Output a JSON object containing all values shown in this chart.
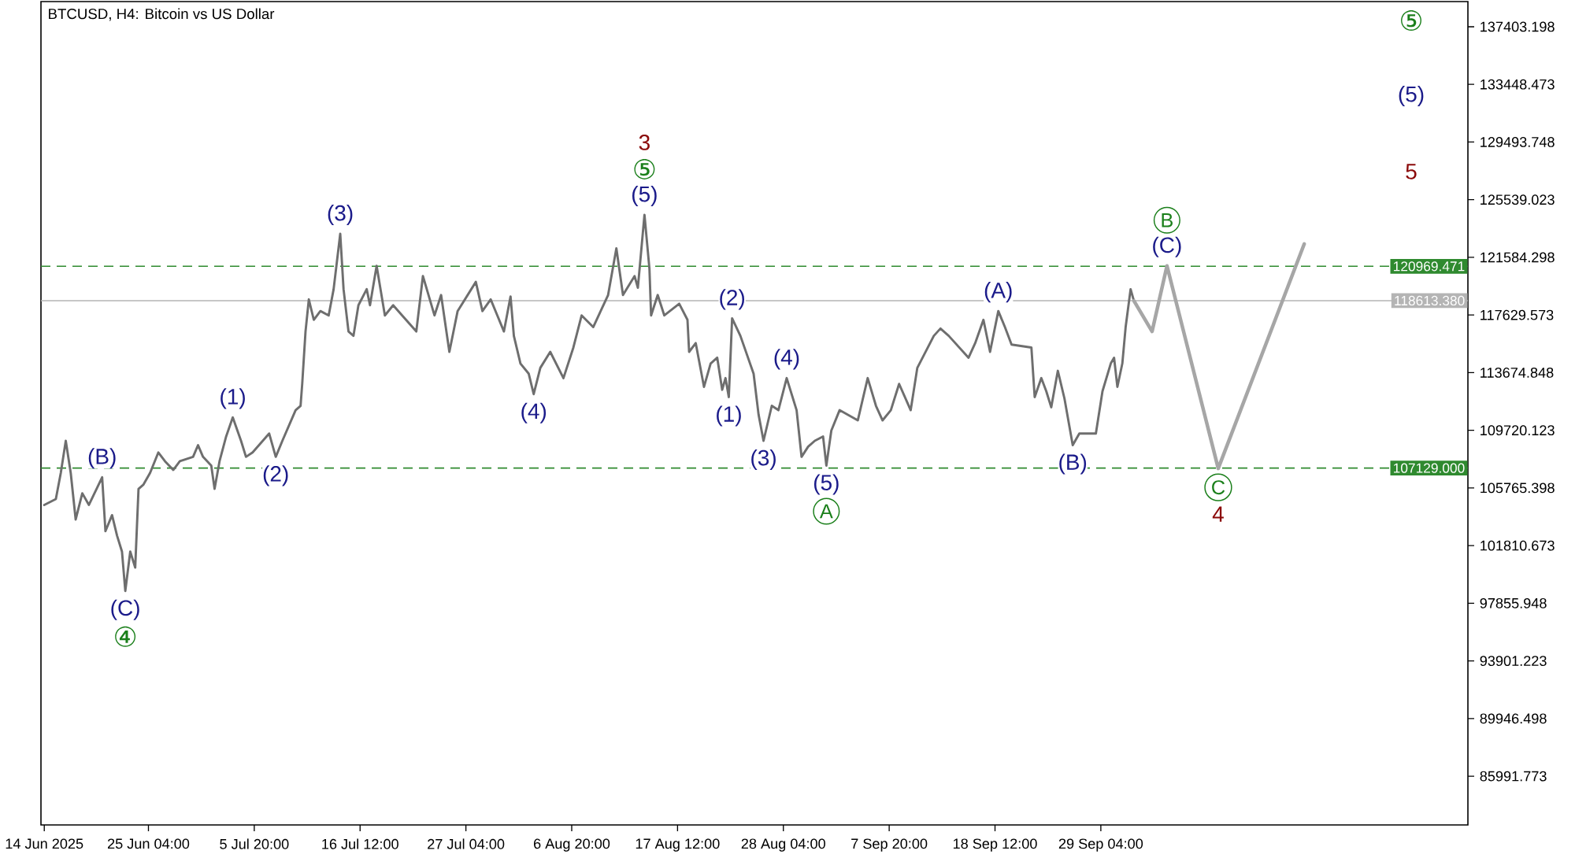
{
  "chart_data": {
    "type": "line",
    "title": "BTCUSD, H4: Bitcoin vs US Dollar",
    "series": [
      {
        "color": "#6e6e6e",
        "x": [
          "2025-06-14T16:00",
          "2025-06-15T20:00",
          "2025-06-16T08:00",
          "2025-06-16T20:00",
          "2025-06-17T08:00",
          "2025-06-17T20:00",
          "2025-06-18T12:00",
          "2025-06-19T04:00",
          "2025-06-20T12:00",
          "2025-06-20T20:00",
          "2025-06-21T12:00",
          "2025-06-22T00:00",
          "2025-06-22T12:00",
          "2025-06-22T20:00",
          "2025-06-23T08:00",
          "2025-06-23T20:00",
          "2025-06-24T04:00",
          "2025-06-24T16:00",
          "2025-06-25T08:00",
          "2025-06-26T04:00",
          "2025-06-26T20:00",
          "2025-06-27T16:00",
          "2025-06-28T08:00",
          "2025-06-29T16:00",
          "2025-06-30T04:00",
          "2025-06-30T16:00",
          "2025-07-01T12:00",
          "2025-07-01T20:00",
          "2025-07-02T08:00",
          "2025-07-03T00:00",
          "2025-07-03T16:00",
          "2025-07-04T12:00",
          "2025-07-05T00:00",
          "2025-07-05T16:00",
          "2025-07-07T08:00",
          "2025-07-08T00:00",
          "2025-07-08T16:00",
          "2025-07-10T00:00",
          "2025-07-10T12:00",
          "2025-07-10T16:00",
          "2025-07-11T00:00",
          "2025-07-11T08:00",
          "2025-07-11T20:00",
          "2025-07-12T12:00",
          "2025-07-13T08:00",
          "2025-07-13T20:00",
          "2025-07-14T12:00",
          "2025-07-14T20:00",
          "2025-07-15T08:00",
          "2025-07-15T20:00",
          "2025-07-16T08:00",
          "2025-07-17T04:00",
          "2025-07-17T12:00",
          "2025-07-18T04:00",
          "2025-07-19T00:00",
          "2025-07-19T20:00",
          "2025-07-22T04:00",
          "2025-07-22T20:00",
          "2025-07-24T00:00",
          "2025-07-24T16:00",
          "2025-07-25T12:00",
          "2025-07-26T08:00",
          "2025-07-28T04:00",
          "2025-07-28T20:00",
          "2025-07-29T16:00",
          "2025-07-30T08:00",
          "2025-07-31T00:00",
          "2025-07-31T16:00",
          "2025-08-01T00:00",
          "2025-08-01T16:00",
          "2025-08-02T12:00",
          "2025-08-03T00:00",
          "2025-08-03T16:00",
          "2025-08-04T16:00",
          "2025-08-06T00:00",
          "2025-08-07T00:00",
          "2025-08-07T20:00",
          "2025-08-09T00:00",
          "2025-08-10T12:00",
          "2025-08-11T08:00",
          "2025-08-12T00:00",
          "2025-08-13T04:00",
          "2025-08-13T12:00",
          "2025-08-14T04:00",
          "2025-08-14T16:00",
          "2025-08-14T20:00",
          "2025-08-15T12:00",
          "2025-08-16T04:00",
          "2025-08-17T16:00",
          "2025-08-18T12:00",
          "2025-08-18T16:00",
          "2025-08-19T08:00",
          "2025-08-20T04:00",
          "2025-08-20T20:00",
          "2025-08-21T12:00",
          "2025-08-22T00:00",
          "2025-08-22T08:00",
          "2025-08-22T16:00",
          "2025-08-23T00:00",
          "2025-08-23T20:00",
          "2025-08-25T04:00",
          "2025-08-25T16:00",
          "2025-08-26T04:00",
          "2025-08-27T00:00",
          "2025-08-27T16:00",
          "2025-08-28T12:00",
          "2025-08-29T12:00",
          "2025-08-30T00:00",
          "2025-08-30T16:00",
          "2025-08-31T08:00",
          "2025-09-01T04:00",
          "2025-09-01T12:00",
          "2025-09-02T00:00",
          "2025-09-02T20:00",
          "2025-09-04T16:00",
          "2025-09-05T16:00",
          "2025-09-06T12:00",
          "2025-09-07T04:00",
          "2025-09-08T00:00",
          "2025-09-08T20:00",
          "2025-09-10T00:00",
          "2025-09-10T16:00",
          "2025-09-12T08:00",
          "2025-09-13T00:00",
          "2025-09-13T20:00",
          "2025-09-15T20:00",
          "2025-09-16T12:00",
          "2025-09-17T08:00",
          "2025-09-18T00:00",
          "2025-09-18T20:00",
          "2025-09-19T12:00",
          "2025-09-20T04:00",
          "2025-09-22T04:00",
          "2025-09-22T12:00",
          "2025-09-23T04:00",
          "2025-09-23T16:00",
          "2025-09-24T04:00",
          "2025-09-24T20:00",
          "2025-09-25T12:00",
          "2025-09-26T08:00",
          "2025-09-27T00:00",
          "2025-09-28T16:00",
          "2025-09-29T08:00",
          "2025-09-30T04:00",
          "2025-09-30T12:00",
          "2025-09-30T20:00",
          "2025-10-01T08:00",
          "2025-10-01T16:00",
          "2025-10-02T04:00",
          "2025-10-02T12:00"
        ],
        "values": [
          104600,
          105000,
          106800,
          109000,
          106800,
          103600,
          105400,
          104600,
          106500,
          102800,
          103900,
          102500,
          101400,
          98700,
          101400,
          100300,
          105700,
          106000,
          106800,
          108200,
          107600,
          107000,
          107600,
          107900,
          108700,
          107900,
          107300,
          105700,
          107600,
          109300,
          110600,
          109000,
          107900,
          108200,
          109500,
          107900,
          109000,
          111100,
          111400,
          112900,
          116500,
          118700,
          117300,
          117900,
          117600,
          119400,
          123200,
          119400,
          116500,
          116200,
          118300,
          119400,
          118300,
          121000,
          117600,
          118300,
          116500,
          120300,
          117600,
          119000,
          115100,
          117900,
          119900,
          117900,
          118700,
          117600,
          116500,
          118900,
          116200,
          114300,
          113600,
          112200,
          114000,
          115100,
          113300,
          115400,
          117600,
          116800,
          119000,
          122200,
          119000,
          120300,
          119500,
          124500,
          120800,
          117600,
          119000,
          117600,
          118400,
          117300,
          115100,
          115700,
          112700,
          114300,
          114700,
          112500,
          113300,
          112000,
          117400,
          116200,
          113600,
          110800,
          109000,
          111400,
          111100,
          113300,
          111100,
          107900,
          108600,
          109000,
          109300,
          107300,
          109700,
          111100,
          110400,
          113300,
          111400,
          110400,
          111100,
          112900,
          111100,
          114000,
          116200,
          116700,
          116200,
          114700,
          115700,
          117300,
          115100,
          117900,
          116800,
          115600,
          115400,
          112000,
          113300,
          112400,
          111300,
          113800,
          111900,
          108700,
          109500,
          109500,
          112400,
          114300,
          114700,
          112700,
          114300,
          116800,
          119400,
          118600
        ]
      },
      {
        "color": "#a6a6a6",
        "x": [
          "2025-10-02T12:00",
          "2025-10-04T08:00",
          "2025-10-05T20:00",
          "2025-10-11T00:00",
          "2025-10-19T16:00"
        ],
        "values": [
          118600,
          116500,
          121000,
          107100,
          122500
        ]
      }
    ],
    "xlim": [
      "2025-06-14T08:00",
      "2025-11-05T04:00"
    ],
    "xticks": [
      {
        "value": "2025-06-14T16:00",
        "label": "14 Jun 2025"
      },
      {
        "value": "2025-06-25T04:00",
        "label": "25 Jun 04:00"
      },
      {
        "value": "2025-07-05T20:00",
        "label": "5 Jul 20:00"
      },
      {
        "value": "2025-07-16T12:00",
        "label": "16 Jul 12:00"
      },
      {
        "value": "2025-07-27T04:00",
        "label": "27 Jul 04:00"
      },
      {
        "value": "2025-08-06T20:00",
        "label": "6 Aug 20:00"
      },
      {
        "value": "2025-08-17T12:00",
        "label": "17 Aug 12:00"
      },
      {
        "value": "2025-08-28T04:00",
        "label": "28 Aug 04:00"
      },
      {
        "value": "2025-09-07T20:00",
        "label": "7 Sep 20:00"
      },
      {
        "value": "2025-09-18T12:00",
        "label": "18 Sep 12:00"
      },
      {
        "value": "2025-09-29T04:00",
        "label": "29 Sep 04:00"
      }
    ],
    "ylim": [
      82650,
      139130
    ],
    "yticks": [
      85991.773,
      89946.498,
      93901.223,
      97855.948,
      101810.673,
      105765.398,
      109720.123,
      113674.848,
      117629.573,
      121584.298,
      125539.023,
      129493.748,
      133448.473,
      137403.198
    ],
    "ref_lines": [
      {
        "axis": "y",
        "value": 120969.471,
        "label": "120969.471",
        "color": "#2f8a2f",
        "line_style": "dashed"
      },
      {
        "axis": "y",
        "value": 118613.38,
        "label": "118613.380",
        "color": "#b4b4b4",
        "line_style": "solid"
      },
      {
        "axis": "y",
        "value": 107129.0,
        "label": "107129.000",
        "color": "#2f8a2f",
        "line_style": "dashed"
      }
    ],
    "annotations": [
      {
        "text": "(B)",
        "x": "2025-06-20T12:00",
        "y": 106500
      },
      {
        "text": "(C)",
        "x": "2025-06-22T20:00",
        "y": 98700
      },
      {
        "text": "④",
        "x": "2025-06-22T20:00",
        "y": 98700
      },
      {
        "text": "(1)",
        "x": "2025-07-03T16:00",
        "y": 110600
      },
      {
        "text": "(2)",
        "x": "2025-07-08T00:00",
        "y": 107900
      },
      {
        "text": "(3)",
        "x": "2025-07-14T12:00",
        "y": 123200
      },
      {
        "text": "(4)",
        "x": "2025-08-03T00:00",
        "y": 112200
      },
      {
        "text": "(5)",
        "x": "2025-08-14T04:00",
        "y": 124500
      },
      {
        "text": "⑤",
        "x": "2025-08-14T04:00",
        "y": 124500
      },
      {
        "text": "3",
        "x": "2025-08-14T04:00",
        "y": 124500
      },
      {
        "text": "(1)",
        "x": "2025-08-22T16:00",
        "y": 112000
      },
      {
        "text": "(2)",
        "x": "2025-08-23T00:00",
        "y": 117400
      },
      {
        "text": "(3)",
        "x": "2025-08-26T04:00",
        "y": 109000
      },
      {
        "text": "(4)",
        "x": "2025-08-28T12:00",
        "y": 113300
      },
      {
        "text": "(5)",
        "x": "2025-09-01T12:00",
        "y": 107300
      },
      {
        "text": "A",
        "x": "2025-09-01T12:00",
        "y": 107300
      },
      {
        "text": "(A)",
        "x": "2025-09-18T20:00",
        "y": 117900
      },
      {
        "text": "(B)",
        "x": "2025-09-26T08:00",
        "y": 108700
      },
      {
        "text": "(C)",
        "x": "2025-10-05T20:00",
        "y": 121000
      },
      {
        "text": "B",
        "x": "2025-10-05T20:00",
        "y": 121000
      },
      {
        "text": "C",
        "x": "2025-10-11T00:00",
        "y": 107100
      },
      {
        "text": "4",
        "x": "2025-10-11T00:00",
        "y": 107100
      },
      "⑤",
      "(5)",
      "5"
    ]
  }
}
